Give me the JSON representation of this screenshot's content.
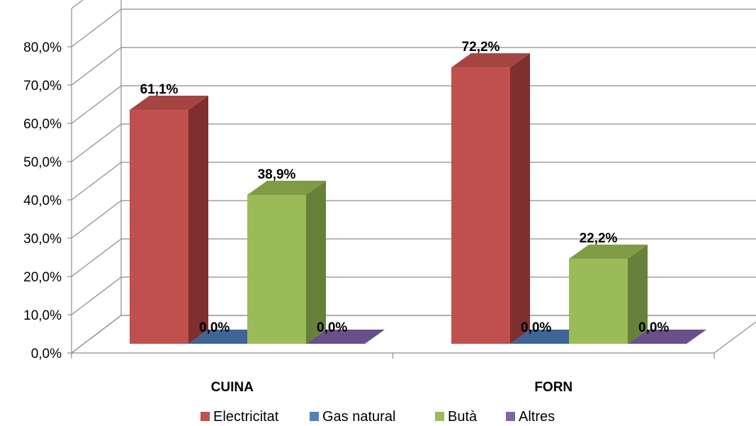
{
  "chart_data": {
    "type": "bar",
    "title": "",
    "xlabel": "",
    "ylabel": "",
    "categories": [
      "CUINA",
      "FORN"
    ],
    "series": [
      {
        "name": "Electricitat",
        "values": [
          61.1,
          72.2
        ],
        "labels": [
          "61,1%",
          "72,2%"
        ]
      },
      {
        "name": "Gas natural",
        "values": [
          0.0,
          0.0
        ],
        "labels": [
          "0,0%",
          "0,0%"
        ]
      },
      {
        "name": "Butà",
        "values": [
          38.9,
          22.2
        ],
        "labels": [
          "38,9%",
          "22,2%"
        ]
      },
      {
        "name": "Altres",
        "values": [
          0.0,
          0.0
        ],
        "labels": [
          "0,0%",
          "0,0%"
        ]
      }
    ],
    "ylim": [
      0,
      80
    ],
    "yticks": [
      0,
      10,
      20,
      30,
      40,
      50,
      60,
      70,
      80
    ],
    "ytick_labels": [
      "0,0%",
      "10,0%",
      "20,0%",
      "30,0%",
      "40,0%",
      "50,0%",
      "60,0%",
      "70,0%",
      "80,0%"
    ],
    "grid": true,
    "style": "3d-column",
    "legend_position": "bottom",
    "colors": {
      "Electricitat": {
        "front": "#C0504D",
        "side": "#7E2F2E",
        "top": "#A54542"
      },
      "Gas natural": {
        "front": "#4F81BD",
        "side": "#345680",
        "top": "#3E6596"
      },
      "Butà": {
        "front": "#9BBB59",
        "side": "#67803A",
        "top": "#7F9B45"
      },
      "Altres": {
        "front": "#8064A2",
        "side": "#55406E",
        "top": "#69508A"
      }
    },
    "gridline_color": "#8C8C8C"
  }
}
